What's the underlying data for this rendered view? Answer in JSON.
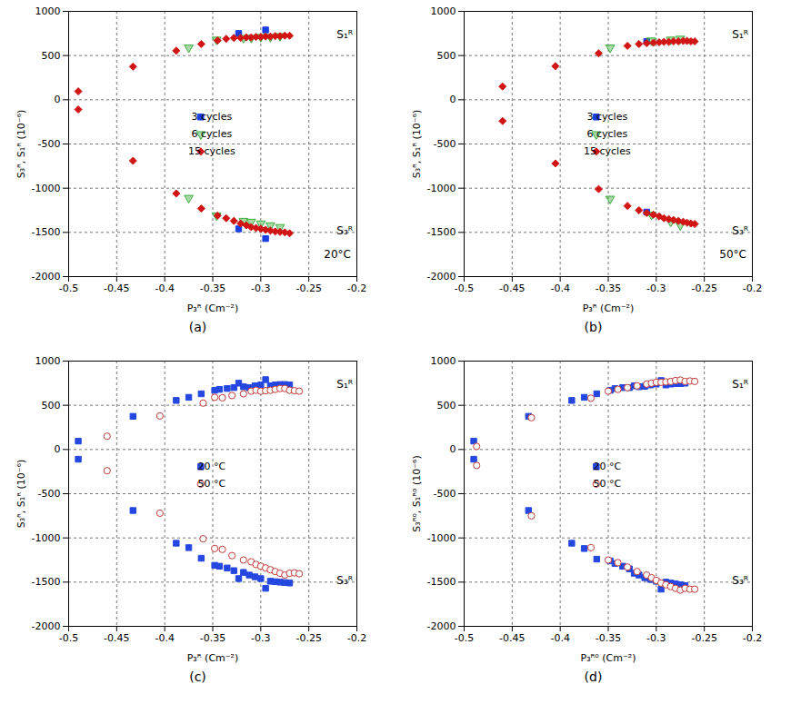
{
  "chart_data": [
    {
      "type": "scatter",
      "title": "(a)",
      "x_label": "P₃ᴿ (Cm⁻²)",
      "y_label": "S₃ᴿ, S₁ᴿ (10⁻⁶)",
      "xlim": [
        -0.5,
        -0.2
      ],
      "xticks": [
        -0.5,
        -0.45,
        -0.4,
        -0.35,
        -0.3,
        -0.25,
        -0.2
      ],
      "ylim": [
        -2000,
        1000
      ],
      "yticks": [
        -2000,
        -1500,
        -1000,
        -500,
        0,
        500,
        1000
      ],
      "grid": true,
      "legend": "center",
      "annotations": [
        "S₁ᴿ",
        "S₃ᴿ",
        "20°C"
      ],
      "series": [
        {
          "name": "3 cycles",
          "color": "#1a3de0",
          "marker": "square",
          "x": [
            -0.323,
            -0.295
          ],
          "s1": [
            750,
            790
          ],
          "s3": [
            -1460,
            -1570
          ]
        },
        {
          "name": "6 cycles",
          "color": "#3fae3f",
          "marker": "triangle-down",
          "x": [
            -0.375,
            -0.346,
            -0.318,
            -0.31,
            -0.3,
            -0.29,
            -0.28
          ],
          "s1": [
            590,
            680,
            700,
            700,
            710,
            710,
            720
          ],
          "s3": [
            -1110,
            -1310,
            -1370,
            -1380,
            -1400,
            -1420,
            -1440
          ]
        },
        {
          "name": "15 cycles",
          "color": "#d11515",
          "marker": "diamond",
          "x": [
            -0.49,
            -0.433,
            -0.388,
            -0.362,
            -0.345,
            -0.336,
            -0.328,
            -0.321,
            -0.315,
            -0.31,
            -0.305,
            -0.3,
            -0.295,
            -0.29,
            -0.285,
            -0.28,
            -0.275,
            -0.27
          ],
          "s1": [
            95,
            375,
            555,
            630,
            670,
            690,
            700,
            700,
            705,
            705,
            710,
            710,
            715,
            715,
            720,
            720,
            725,
            725
          ],
          "s3": [
            -110,
            -690,
            -1060,
            -1230,
            -1310,
            -1340,
            -1370,
            -1400,
            -1420,
            -1440,
            -1450,
            -1460,
            -1470,
            -1480,
            -1490,
            -1495,
            -1500,
            -1510
          ]
        }
      ]
    },
    {
      "type": "scatter",
      "title": "(b)",
      "x_label": "P₃ᴿ (Cm⁻²)",
      "y_label": "S₃ᴿ, S₁ᴿ (10⁻⁶)",
      "xlim": [
        -0.5,
        -0.2
      ],
      "xticks": [
        -0.5,
        -0.45,
        -0.4,
        -0.35,
        -0.3,
        -0.25,
        -0.2
      ],
      "ylim": [
        -2000,
        1000
      ],
      "yticks": [
        -2000,
        -1500,
        -1000,
        -500,
        0,
        500,
        1000
      ],
      "grid": true,
      "legend": "center",
      "annotations": [
        "S₁ᴿ",
        "S₃ᴿ",
        "50°C"
      ],
      "series": [
        {
          "name": "3 cycles",
          "color": "#1a3de0",
          "marker": "square",
          "x": [
            -0.31
          ],
          "s1": [
            660
          ],
          "s3": [
            -1270
          ]
        },
        {
          "name": "6 cycles",
          "color": "#3fae3f",
          "marker": "triangle-down",
          "x": [
            -0.348,
            -0.305,
            -0.285,
            -0.275
          ],
          "s1": [
            590,
            670,
            680,
            690
          ],
          "s3": [
            -1120,
            -1300,
            -1380,
            -1420
          ]
        },
        {
          "name": "15 cycles",
          "color": "#d11515",
          "marker": "diamond",
          "x": [
            -0.46,
            -0.405,
            -0.36,
            -0.33,
            -0.318,
            -0.31,
            -0.303,
            -0.297,
            -0.292,
            -0.287,
            -0.282,
            -0.277,
            -0.272,
            -0.268,
            -0.264,
            -0.26
          ],
          "s1": [
            150,
            380,
            525,
            610,
            630,
            640,
            645,
            650,
            655,
            655,
            660,
            660,
            665,
            665,
            660,
            660
          ],
          "s3": [
            -240,
            -720,
            -1010,
            -1200,
            -1250,
            -1280,
            -1300,
            -1320,
            -1340,
            -1350,
            -1360,
            -1370,
            -1380,
            -1390,
            -1400,
            -1405
          ]
        }
      ]
    },
    {
      "type": "scatter",
      "title": "(c)",
      "x_label": "P₃ᴿ (Cm⁻²)",
      "y_label": "S₃ᴿ, S₁ᴿ (10⁻⁶)",
      "xlim": [
        -0.5,
        -0.2
      ],
      "xticks": [
        -0.5,
        -0.45,
        -0.4,
        -0.35,
        -0.3,
        -0.25,
        -0.2
      ],
      "ylim": [
        -2000,
        1000
      ],
      "yticks": [
        -2000,
        -1500,
        -1000,
        -500,
        0,
        500,
        1000
      ],
      "grid": true,
      "legend": "center",
      "annotations": [
        "S₁ᴿ",
        "S₃ᴿ"
      ],
      "series": [
        {
          "name": "20 °C",
          "color": "#2447e0",
          "marker": "square",
          "x": [
            -0.49,
            -0.433,
            -0.388,
            -0.375,
            -0.362,
            -0.348,
            -0.343,
            -0.335,
            -0.328,
            -0.323,
            -0.318,
            -0.312,
            -0.306,
            -0.3,
            -0.295,
            -0.29,
            -0.285,
            -0.28,
            -0.275,
            -0.27
          ],
          "s1": [
            95,
            375,
            555,
            590,
            630,
            670,
            680,
            690,
            700,
            750,
            710,
            700,
            720,
            730,
            790,
            720,
            730,
            735,
            735,
            730
          ],
          "s3": [
            -110,
            -690,
            -1060,
            -1110,
            -1230,
            -1310,
            -1320,
            -1340,
            -1370,
            -1460,
            -1390,
            -1420,
            -1440,
            -1460,
            -1570,
            -1490,
            -1495,
            -1500,
            -1505,
            -1510
          ]
        },
        {
          "name": "50 °C",
          "color": "#c23a3a",
          "marker": "circle-open",
          "x": [
            -0.46,
            -0.405,
            -0.36,
            -0.348,
            -0.34,
            -0.33,
            -0.318,
            -0.31,
            -0.305,
            -0.3,
            -0.295,
            -0.29,
            -0.285,
            -0.28,
            -0.275,
            -0.27,
            -0.265,
            -0.26
          ],
          "s1": [
            150,
            380,
            525,
            590,
            585,
            610,
            630,
            660,
            670,
            660,
            665,
            670,
            680,
            690,
            690,
            670,
            665,
            660
          ],
          "s3": [
            -240,
            -720,
            -1010,
            -1120,
            -1130,
            -1200,
            -1250,
            -1270,
            -1300,
            -1320,
            -1340,
            -1360,
            -1380,
            -1400,
            -1420,
            -1400,
            -1395,
            -1405
          ]
        }
      ]
    },
    {
      "type": "scatter",
      "title": "(d)",
      "x_label": "P₃ᴿ⁰ (Cm⁻²)",
      "y_label": "S₃ᴿ⁰, S₁ᴿ⁰ (10⁻⁶)",
      "xlim": [
        -0.5,
        -0.2
      ],
      "xticks": [
        -0.5,
        -0.45,
        -0.4,
        -0.35,
        -0.3,
        -0.25,
        -0.2
      ],
      "ylim": [
        -2000,
        1000
      ],
      "yticks": [
        -2000,
        -1500,
        -1000,
        -500,
        0,
        500,
        1000
      ],
      "grid": true,
      "legend": "center",
      "annotations": [
        "S₁ᴿ",
        "S₃ᴿ"
      ],
      "series": [
        {
          "name": "20 °C",
          "color": "#2447e0",
          "marker": "square",
          "x": [
            -0.49,
            -0.433,
            -0.388,
            -0.375,
            -0.362,
            -0.348,
            -0.343,
            -0.335,
            -0.328,
            -0.323,
            -0.318,
            -0.312,
            -0.306,
            -0.3,
            -0.295,
            -0.29,
            -0.285,
            -0.28,
            -0.275,
            -0.27
          ],
          "s1": [
            95,
            375,
            555,
            590,
            630,
            670,
            690,
            700,
            700,
            720,
            710,
            715,
            730,
            740,
            780,
            730,
            740,
            745,
            745,
            750
          ],
          "s3": [
            -110,
            -690,
            -1060,
            -1120,
            -1240,
            -1260,
            -1290,
            -1320,
            -1350,
            -1400,
            -1420,
            -1450,
            -1470,
            -1490,
            -1580,
            -1500,
            -1510,
            -1520,
            -1530,
            -1540
          ]
        },
        {
          "name": "50 °C",
          "color": "#c23a3a",
          "marker": "circle-open",
          "x": [
            -0.487,
            -0.43,
            -0.368,
            -0.35,
            -0.34,
            -0.33,
            -0.32,
            -0.31,
            -0.305,
            -0.3,
            -0.295,
            -0.29,
            -0.285,
            -0.28,
            -0.275,
            -0.27,
            -0.265,
            -0.26
          ],
          "s1": [
            35,
            360,
            580,
            660,
            680,
            700,
            720,
            740,
            750,
            760,
            760,
            765,
            770,
            780,
            785,
            770,
            775,
            770
          ],
          "s3": [
            -180,
            -750,
            -1110,
            -1250,
            -1280,
            -1330,
            -1380,
            -1420,
            -1450,
            -1480,
            -1510,
            -1530,
            -1550,
            -1570,
            -1590,
            -1570,
            -1580,
            -1580
          ]
        }
      ]
    }
  ]
}
